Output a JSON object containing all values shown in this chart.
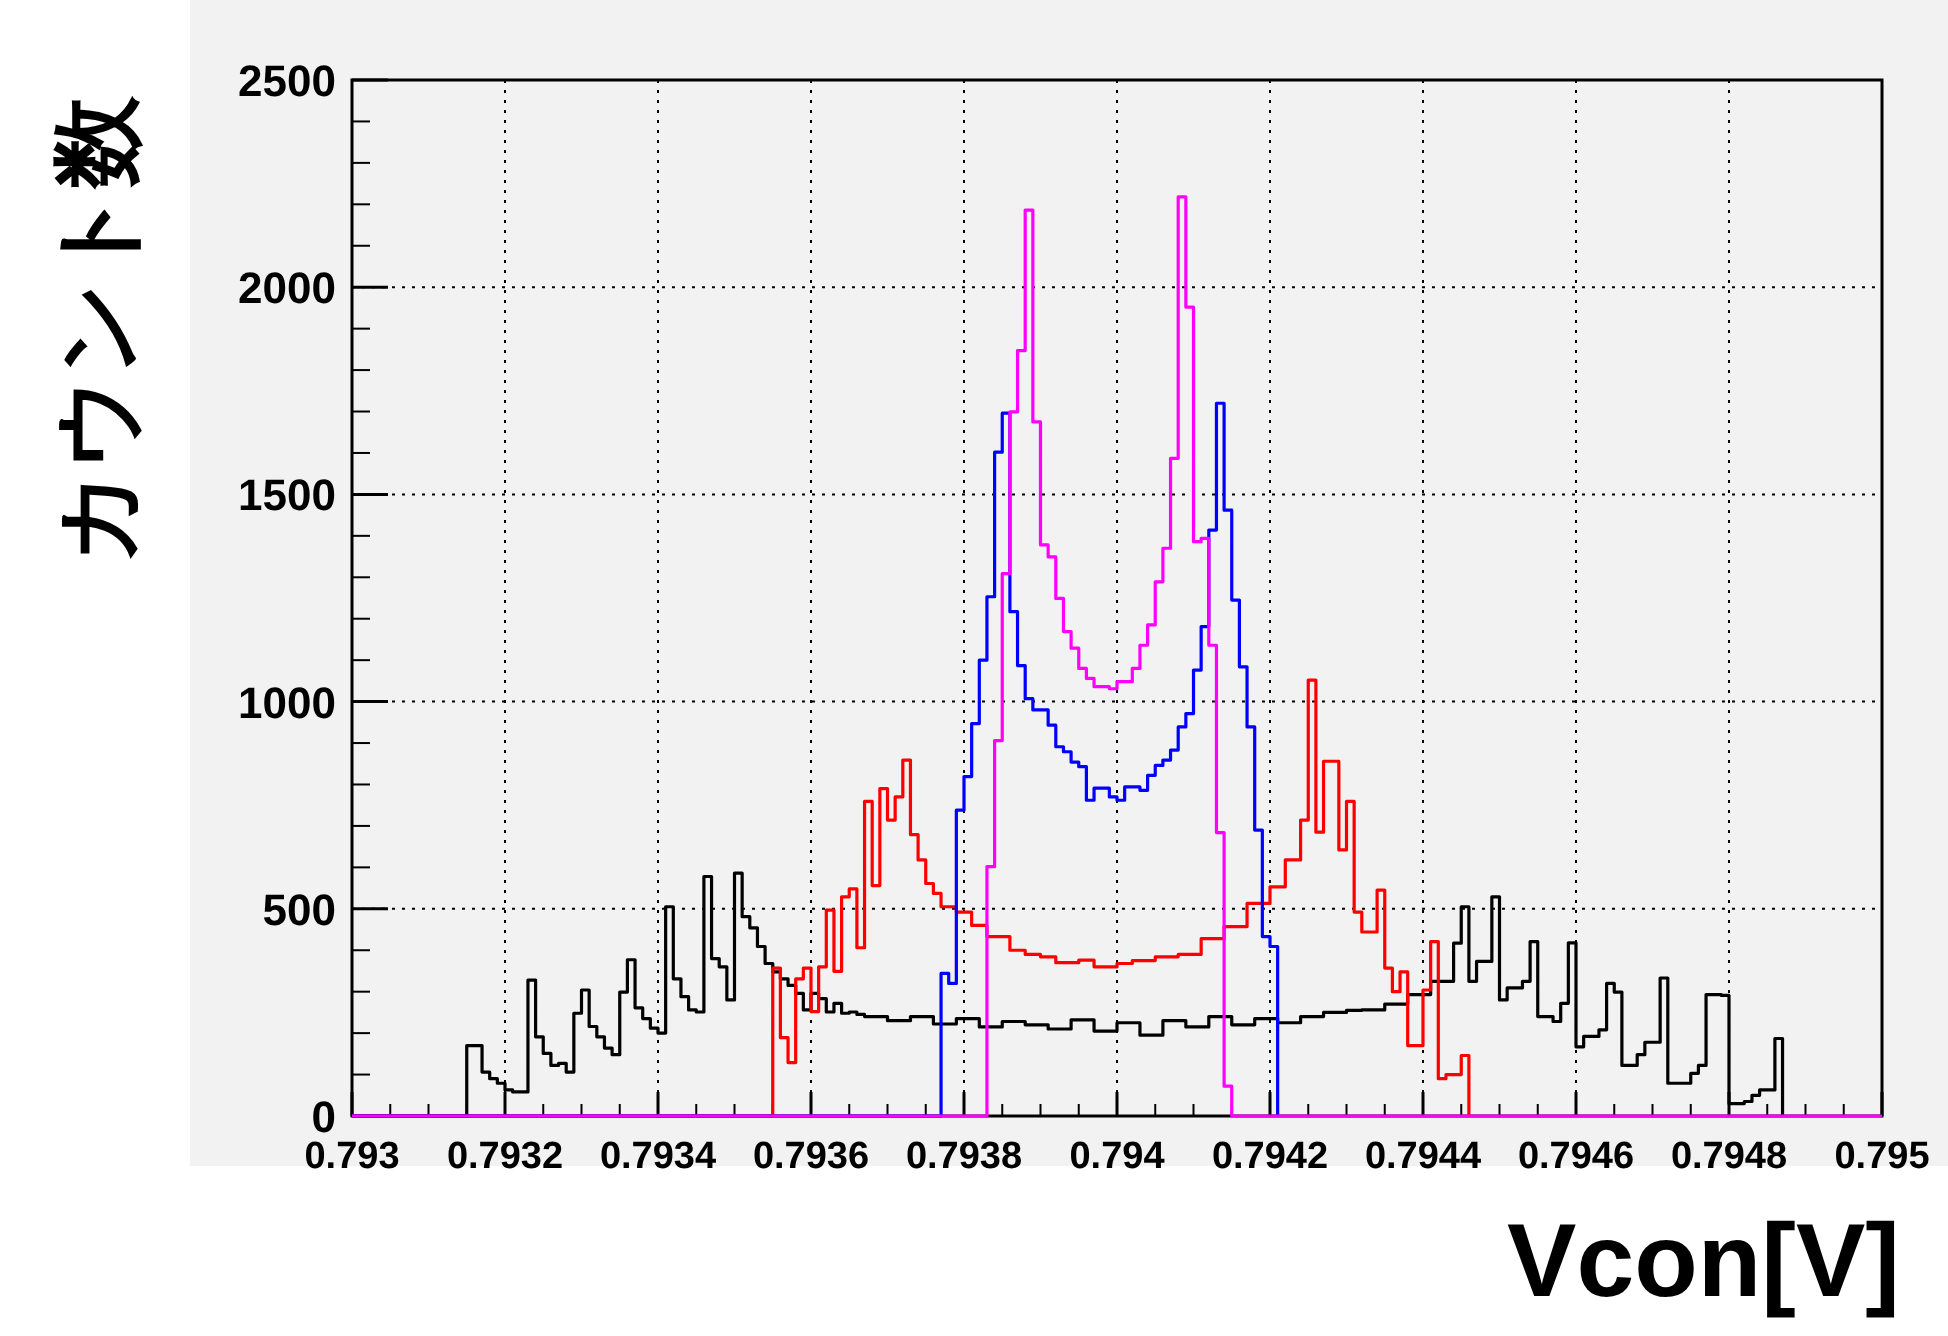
{
  "chart_data": {
    "type": "step",
    "xlabel": "Vcon[V]",
    "ylabel": "カウント数",
    "xlim": [
      0.793,
      0.795
    ],
    "ylim": [
      0,
      2500
    ],
    "xticks": [
      0.793,
      0.7932,
      0.7934,
      0.7936,
      0.7938,
      0.794,
      0.7942,
      0.7944,
      0.7946,
      0.7948,
      0.795
    ],
    "yticks": [
      0,
      500,
      1000,
      1500,
      2000,
      2500
    ],
    "grid": true,
    "series": [
      {
        "color": "#000000",
        "x": [
          0.793,
          0.79315,
          0.79317,
          0.79318,
          0.79319,
          0.7932,
          0.79321,
          0.79323,
          0.79324,
          0.79325,
          0.79326,
          0.79327,
          0.79328,
          0.79329,
          0.7933,
          0.79331,
          0.79332,
          0.79333,
          0.79334,
          0.79335,
          0.79336,
          0.79337,
          0.79338,
          0.79339,
          0.7934,
          0.79341,
          0.79342,
          0.79343,
          0.79344,
          0.79345,
          0.79346,
          0.79347,
          0.79348,
          0.79349,
          0.7935,
          0.79351,
          0.79352,
          0.79353,
          0.79354,
          0.79355,
          0.79356,
          0.79357,
          0.79358,
          0.79359,
          0.7936,
          0.79361,
          0.79362,
          0.79363,
          0.79364,
          0.79365,
          0.79366,
          0.79367,
          0.7937,
          0.79373,
          0.79376,
          0.79379,
          0.79382,
          0.79385,
          0.79388,
          0.79391,
          0.79394,
          0.79397,
          0.794,
          0.79403,
          0.79406,
          0.79409,
          0.79412,
          0.79415,
          0.79418,
          0.79421,
          0.79424,
          0.79427,
          0.7943,
          0.79432,
          0.79435,
          0.79438,
          0.79441,
          0.79444,
          0.79445,
          0.79446,
          0.79447,
          0.79449,
          0.7945,
          0.79451,
          0.79453,
          0.79454,
          0.79455,
          0.79457,
          0.79458,
          0.79459,
          0.7946,
          0.79461,
          0.79463,
          0.79464,
          0.79465,
          0.79466,
          0.79468,
          0.79469,
          0.79471,
          0.79472,
          0.79475,
          0.79476,
          0.79477,
          0.79479,
          0.7948,
          0.79482,
          0.79483,
          0.79484,
          0.79486,
          0.79487
        ],
        "values": [
          0,
          170,
          106,
          90,
          79,
          63,
          58,
          328,
          191,
          151,
          122,
          127,
          106,
          248,
          304,
          216,
          191,
          164,
          148,
          299,
          377,
          261,
          235,
          212,
          200,
          505,
          331,
          288,
          256,
          251,
          578,
          380,
          360,
          280,
          586,
          481,
          454,
          409,
          368,
          348,
          331,
          315,
          296,
          256,
          296,
          283,
          251,
          272,
          248,
          251,
          245,
          240,
          230,
          240,
          222,
          235,
          215,
          228,
          220,
          210,
          232,
          205,
          225,
          195,
          230,
          215,
          240,
          220,
          235,
          225,
          240,
          250,
          255,
          256,
          270,
          293,
          325,
          417,
          505,
          325,
          373,
          529,
          280,
          309,
          325,
          421,
          240,
          228,
          272,
          418,
          167,
          192,
          208,
          320,
          299,
          122,
          148,
          178,
          333,
          79,
          103,
          122,
          293,
          291,
          30,
          35,
          50,
          63,
          187,
          0
        ]
      },
      {
        "color": "#ff0000",
        "x": [
          0.793,
          0.79355,
          0.79356,
          0.79357,
          0.79358,
          0.79359,
          0.7936,
          0.79361,
          0.79362,
          0.79363,
          0.79364,
          0.79365,
          0.79366,
          0.79367,
          0.79368,
          0.79369,
          0.7937,
          0.79371,
          0.79372,
          0.79373,
          0.79374,
          0.79375,
          0.79376,
          0.79377,
          0.79379,
          0.79381,
          0.79383,
          0.79386,
          0.79388,
          0.7939,
          0.79392,
          0.79395,
          0.79397,
          0.794,
          0.79402,
          0.79405,
          0.79408,
          0.79411,
          0.79414,
          0.79417,
          0.7942,
          0.79422,
          0.79424,
          0.79425,
          0.79426,
          0.79427,
          0.79429,
          0.7943,
          0.79431,
          0.79432,
          0.79434,
          0.79435,
          0.79436,
          0.79437,
          0.79438,
          0.7944,
          0.79441,
          0.79442,
          0.79443,
          0.79445,
          0.79446
        ],
        "values": [
          0,
          357,
          189,
          129,
          331,
          357,
          252,
          360,
          497,
          349,
          529,
          548,
          406,
          759,
          556,
          790,
          714,
          770,
          859,
          679,
          618,
          561,
          537,
          505,
          492,
          460,
          433,
          400,
          390,
          384,
          370,
          376,
          360,
          368,
          375,
          384,
          390,
          428,
          457,
          513,
          553,
          618,
          714,
          1052,
          685,
          856,
          642,
          759,
          492,
          444,
          545,
          357,
          300,
          348,
          170,
          304,
          421,
          90,
          100,
          146,
          0
        ]
      },
      {
        "color": "#0000ff",
        "x": [
          0.793,
          0.79377,
          0.79378,
          0.79379,
          0.7938,
          0.79381,
          0.79382,
          0.79383,
          0.79384,
          0.79385,
          0.79386,
          0.79387,
          0.79388,
          0.79389,
          0.7939,
          0.79391,
          0.79392,
          0.79393,
          0.79394,
          0.79395,
          0.79396,
          0.79397,
          0.79399,
          0.794,
          0.79401,
          0.79403,
          0.79404,
          0.79405,
          0.79406,
          0.79407,
          0.79408,
          0.79409,
          0.7941,
          0.79411,
          0.79412,
          0.79413,
          0.79414,
          0.79415,
          0.79416,
          0.79417,
          0.79418,
          0.79419,
          0.7942,
          0.79421
        ],
        "values": [
          0,
          344,
          320,
          738,
          819,
          947,
          1100,
          1253,
          1602,
          1696,
          1217,
          1087,
          1007,
          980,
          980,
          943,
          891,
          879,
          854,
          843,
          762,
          791,
          770,
          762,
          794,
          786,
          822,
          846,
          859,
          883,
          939,
          971,
          1076,
          1181,
          1414,
          1720,
          1462,
          1245,
          1084,
          939,
          690,
          433,
          409,
          0
        ]
      },
      {
        "color": "#ff00ff",
        "x": [
          0.793,
          0.79383,
          0.79384,
          0.79385,
          0.79386,
          0.79387,
          0.79388,
          0.79389,
          0.7939,
          0.79391,
          0.79392,
          0.79393,
          0.79394,
          0.79395,
          0.79396,
          0.79397,
          0.79399,
          0.794,
          0.79402,
          0.79403,
          0.79404,
          0.79405,
          0.79406,
          0.79407,
          0.79408,
          0.79409,
          0.7941,
          0.79411,
          0.79412,
          0.79413,
          0.79414,
          0.79415,
          0.795
        ],
        "values": [
          0,
          602,
          906,
          1309,
          1699,
          1847,
          2186,
          1675,
          1378,
          1349,
          1249,
          1169,
          1129,
          1080,
          1056,
          1036,
          1031,
          1048,
          1080,
          1136,
          1185,
          1289,
          1370,
          1587,
          2218,
          1952,
          1386,
          1394,
          1136,
          684,
          72,
          0,
          0
        ]
      }
    ]
  }
}
